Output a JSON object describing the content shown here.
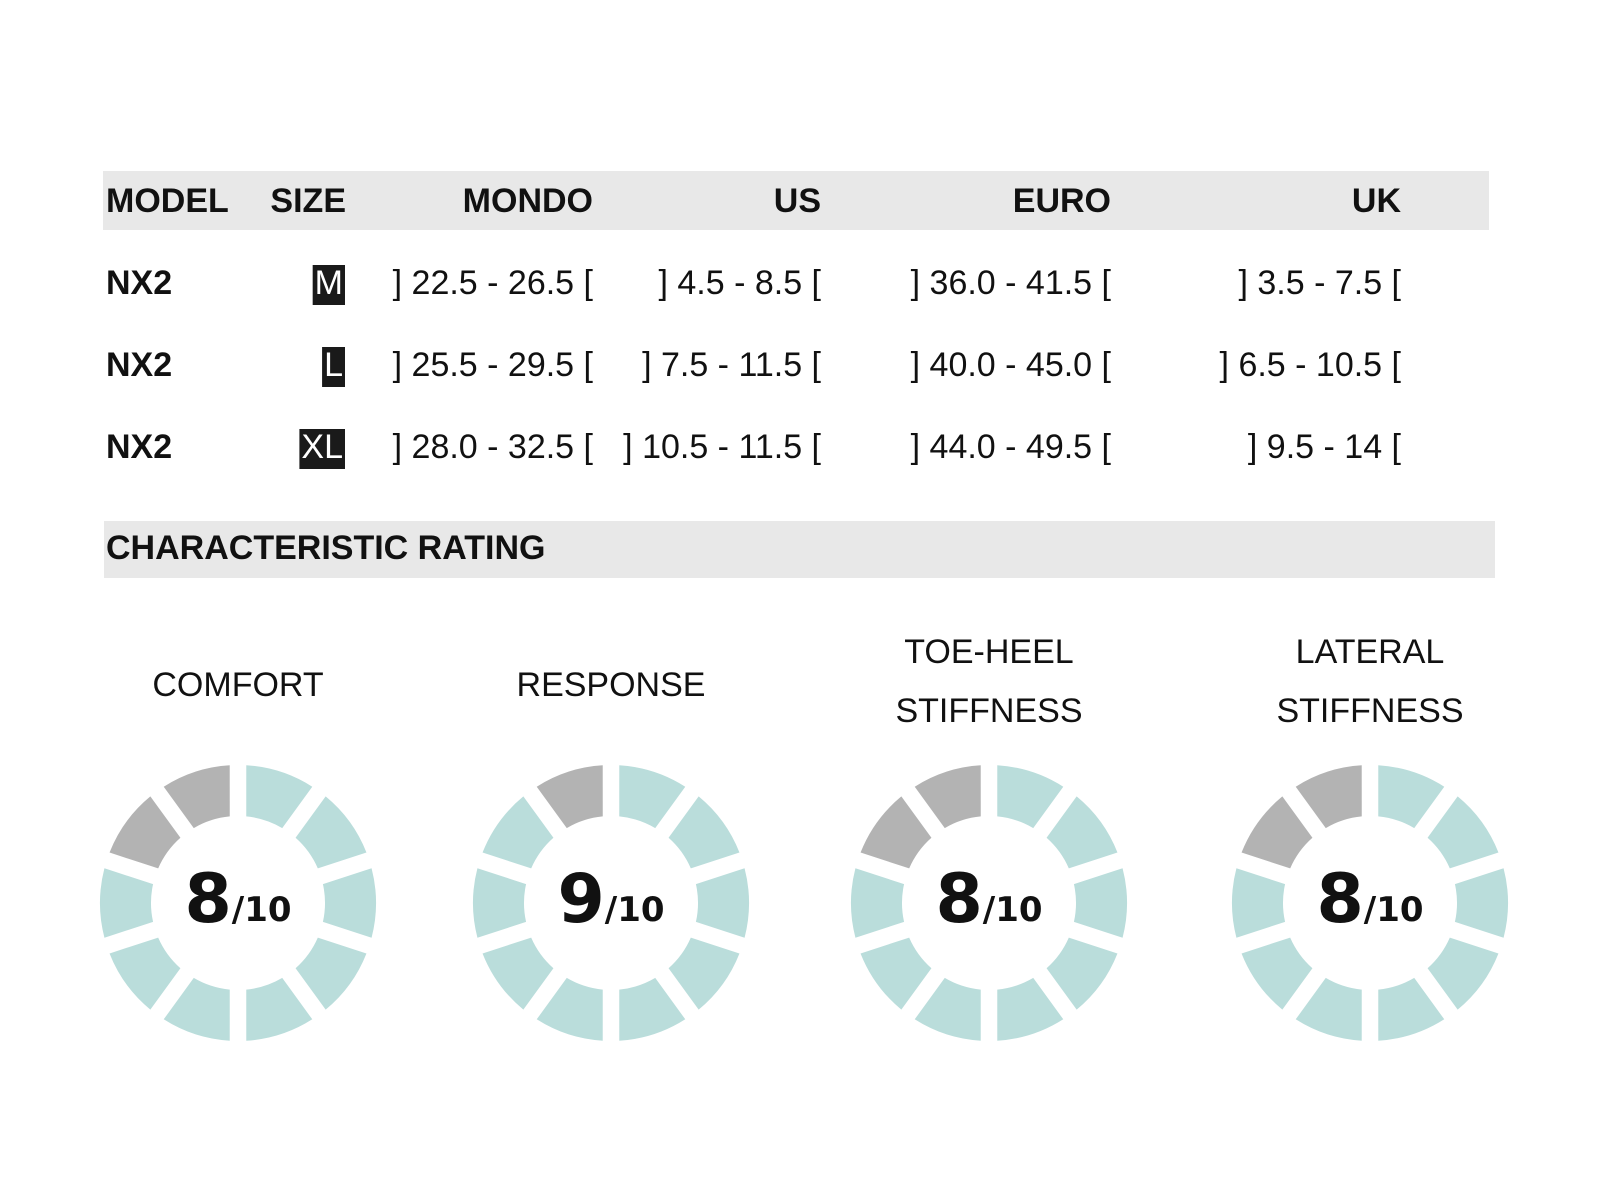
{
  "table": {
    "header": [
      "MODEL",
      "SIZE",
      "MONDO",
      "US",
      "EURO",
      "UK"
    ],
    "rows": [
      [
        "NX2",
        "M",
        "] 22.5 - 26.5 [",
        "] 4.5 - 8.5 [",
        "] 36.0 - 41.5 [",
        "] 3.5 - 7.5 ["
      ],
      [
        "NX2",
        "L",
        "] 25.5 - 29.5 [",
        "] 7.5 - 11.5 [",
        "] 40.0 - 45.0 [",
        "] 6.5 - 10.5 ["
      ],
      [
        "NX2",
        "XL",
        "] 28.0 - 32.5 [",
        "] 10.5 - 11.5 [",
        "] 44.0 - 49.5 [",
        "] 9.5 - 14 ["
      ]
    ]
  },
  "rating": {
    "title": "CHARACTERISTIC RATING",
    "items": [
      {
        "label": [
          "COMFORT"
        ],
        "score": 8,
        "max": {
          "value": 10,
          "label": "/10"
        }
      },
      {
        "label": [
          "RESPONSE"
        ],
        "score": 9,
        "max": {
          "value": 10,
          "label": "/10"
        }
      },
      {
        "label": [
          "TOE-HEEL",
          "STIFFNESS"
        ],
        "score": 8,
        "max": {
          "value": 10,
          "label": "/10"
        }
      },
      {
        "label": [
          "LATERAL",
          "STIFFNESS"
        ],
        "score": 8,
        "max": {
          "value": 10,
          "label": "/10"
        }
      }
    ]
  }
}
